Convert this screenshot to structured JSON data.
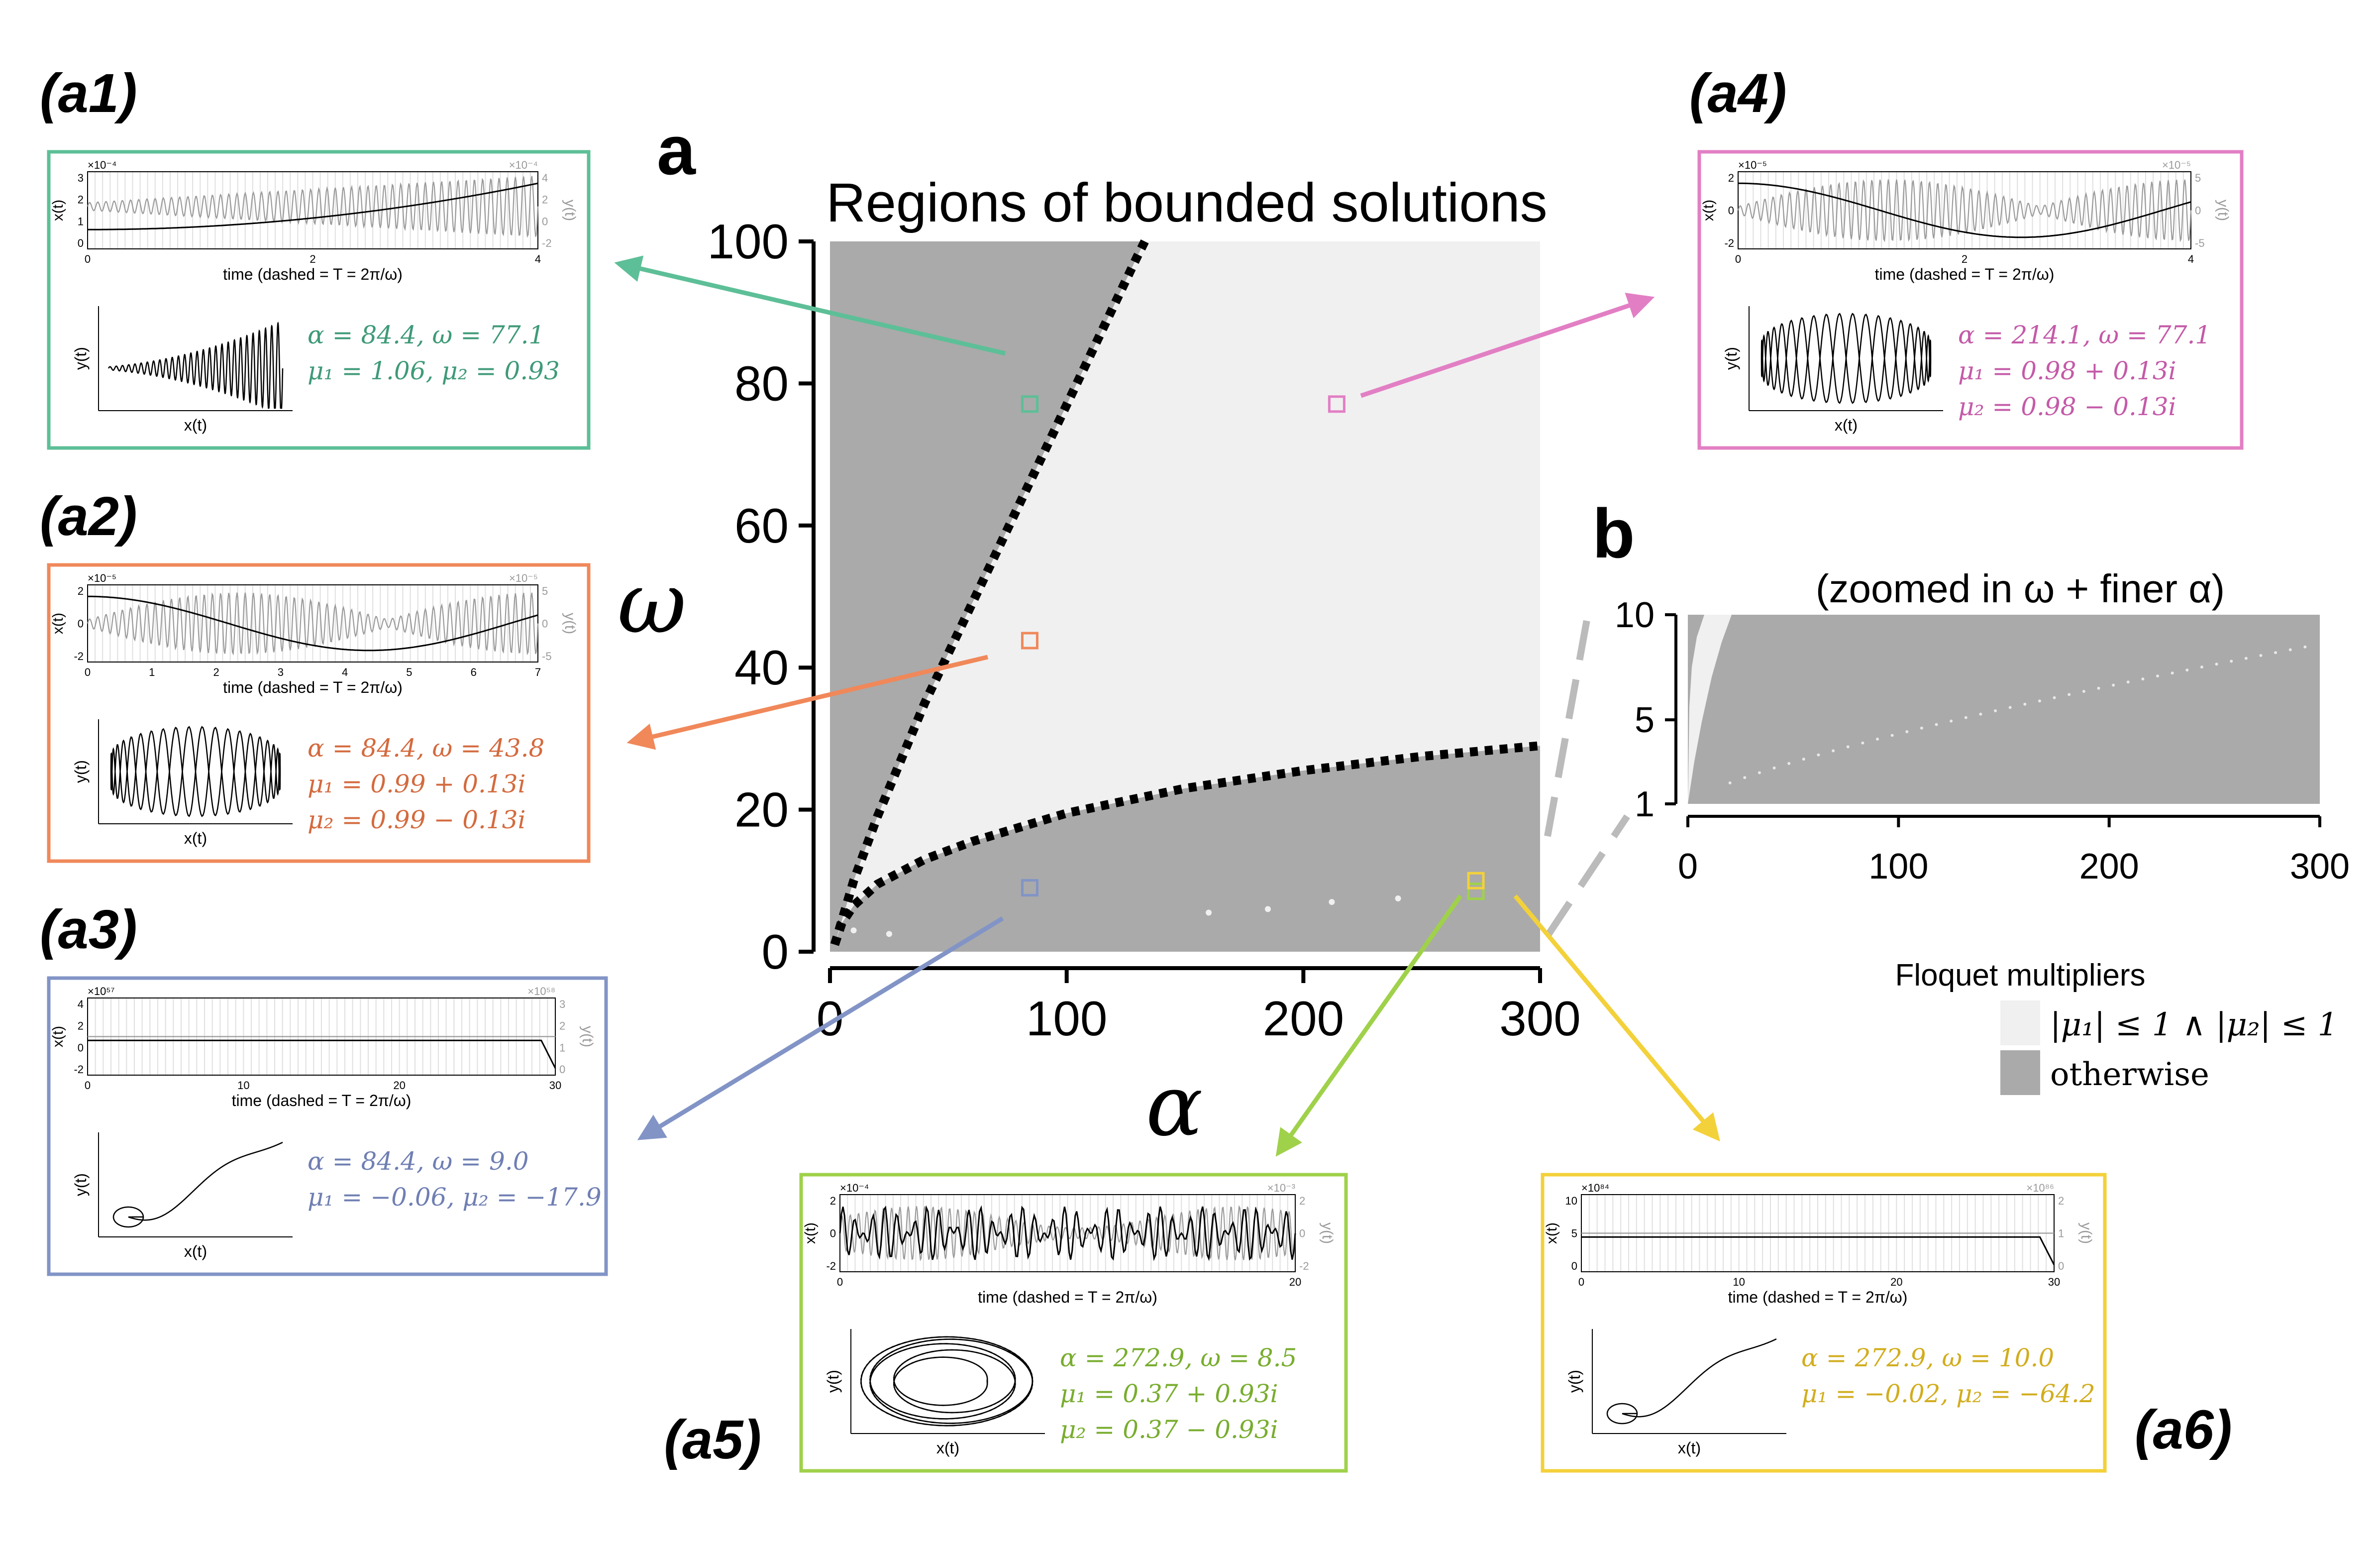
{
  "colors": {
    "a1": "#5dbf97",
    "a2": "#f0885a",
    "a3": "#8294c6",
    "a4": "#e27fc4",
    "a5": "#9fd14a",
    "a6": "#f3d13a",
    "a1_text": "#3f9a78",
    "a2_text": "#d46a3e",
    "a3_text": "#6f7fb3",
    "a4_text": "#c45aa8",
    "a5_text": "#78ad2e",
    "a6_text": "#d2ad1e",
    "bounded": "#f0f0f0",
    "otherwise": "#aaaaaa",
    "curve": "#000000"
  },
  "chart_data": [
    {
      "type": "heatmap",
      "panel_label": "a",
      "title": "Regions of bounded solutions",
      "xlabel": "α",
      "ylabel": "ω",
      "xlim": [
        0,
        300
      ],
      "ylim": [
        0,
        100
      ],
      "x_ticks": [
        "0",
        "100",
        "200",
        "300"
      ],
      "y_ticks": [
        "0",
        "20",
        "40",
        "60",
        "80",
        "100"
      ],
      "upper_boundary": [
        [
          2,
          1
        ],
        [
          10,
          10
        ],
        [
          20,
          19
        ],
        [
          30,
          27
        ],
        [
          40,
          35
        ],
        [
          50,
          42
        ],
        [
          60,
          49
        ],
        [
          70,
          56
        ],
        [
          80,
          63
        ],
        [
          90,
          70
        ],
        [
          100,
          77
        ],
        [
          110,
          84
        ],
        [
          120,
          91
        ],
        [
          130,
          98
        ],
        [
          133,
          100
        ]
      ],
      "lower_boundary": [
        [
          2,
          1
        ],
        [
          5,
          4
        ],
        [
          10,
          6.5
        ],
        [
          20,
          9.5
        ],
        [
          40,
          13
        ],
        [
          60,
          15.5
        ],
        [
          80,
          17.5
        ],
        [
          100,
          19.5
        ],
        [
          150,
          23
        ],
        [
          200,
          25.5
        ],
        [
          250,
          27.5
        ],
        [
          300,
          29
        ]
      ],
      "marked_points": [
        {
          "id": "a1",
          "alpha": 84.4,
          "omega": 77.1
        },
        {
          "id": "a2",
          "alpha": 84.4,
          "omega": 43.8
        },
        {
          "id": "a3",
          "alpha": 84.4,
          "omega": 9.0
        },
        {
          "id": "a4",
          "alpha": 214.1,
          "omega": 77.1
        },
        {
          "id": "a5",
          "alpha": 272.9,
          "omega": 8.5
        },
        {
          "id": "a6",
          "alpha": 272.9,
          "omega": 10.0
        }
      ],
      "bounded_dots": [
        [
          10,
          3
        ],
        [
          25,
          2.5
        ],
        [
          160,
          5.5
        ],
        [
          185,
          6
        ],
        [
          212,
          7
        ],
        [
          240,
          7.5
        ]
      ]
    },
    {
      "type": "heatmap",
      "panel_label": "b",
      "title": "(zoomed in ω + finer α)",
      "xlim": [
        0,
        300
      ],
      "ylim": [
        1,
        10
      ],
      "x_ticks": [
        "0",
        "100",
        "200",
        "300"
      ],
      "y_ticks": [
        "1",
        "5",
        "10"
      ],
      "legend_title": "Floquet multipliers",
      "legend": [
        {
          "label": "|μ₁| ≤ 1 ∧ |μ₂| ≤ 1",
          "color": "#f0f0f0"
        },
        {
          "label": "otherwise",
          "color": "#aaaaaa"
        }
      ]
    }
  ],
  "insets": {
    "time_label": "time (dashed = T = 2π/ω)",
    "x_label": "x(t)",
    "y_label": "y(t)",
    "a1": {
      "label": "(a1)",
      "exp": "×10⁻⁴",
      "exp_r": "×10⁻⁴",
      "left_ticks": [
        "3",
        "2",
        "1",
        "0"
      ],
      "right_ticks": [
        "4",
        "2",
        "0",
        "-2"
      ],
      "x_ticks": [
        "0",
        "2",
        "4"
      ],
      "line1": "α = 84.4, ω = 77.1",
      "line2": "μ₁ = 1.06, μ₂ = 0.93",
      "line3": ""
    },
    "a2": {
      "label": "(a2)",
      "exp": "×10⁻⁵",
      "exp_r": "×10⁻⁵",
      "left_ticks": [
        "2",
        "0",
        "-2"
      ],
      "right_ticks": [
        "5",
        "0",
        "-5"
      ],
      "x_ticks": [
        "0",
        "1",
        "2",
        "3",
        "4",
        "5",
        "6",
        "7"
      ],
      "line1": "α = 84.4, ω = 43.8",
      "line2": "μ₁ = 0.99 + 0.13i",
      "line3": "μ₂ = 0.99 − 0.13i"
    },
    "a3": {
      "label": "(a3)",
      "exp": "×10⁵⁷",
      "exp_r": "×10⁵⁸",
      "left_ticks": [
        "4",
        "2",
        "0",
        "-2"
      ],
      "right_ticks": [
        "3",
        "2",
        "1",
        "0"
      ],
      "x_ticks": [
        "0",
        "10",
        "20",
        "30"
      ],
      "line1": "α = 84.4, ω = 9.0",
      "line2": "μ₁ = −0.06, μ₂ = −17.9",
      "line3": ""
    },
    "a4": {
      "label": "(a4)",
      "exp": "×10⁻⁵",
      "exp_r": "×10⁻⁵",
      "left_ticks": [
        "2",
        "0",
        "-2"
      ],
      "right_ticks": [
        "5",
        "0",
        "-5"
      ],
      "x_ticks": [
        "0",
        "2",
        "4"
      ],
      "line1": "α = 214.1, ω = 77.1",
      "line2": "μ₁ = 0.98 + 0.13i",
      "line3": "μ₂ = 0.98 − 0.13i"
    },
    "a5": {
      "label": "(a5)",
      "exp": "×10⁻⁴",
      "exp_r": "×10⁻³",
      "left_ticks": [
        "2",
        "0",
        "-2"
      ],
      "right_ticks": [
        "2",
        "0",
        "-2"
      ],
      "x_ticks": [
        "0",
        "20"
      ],
      "line1": "α = 272.9, ω = 8.5",
      "line2": "μ₁ = 0.37 + 0.93i",
      "line3": "μ₂ = 0.37 − 0.93i"
    },
    "a6": {
      "label": "(a6)",
      "exp": "×10⁸⁴",
      "exp_r": "×10⁸⁶",
      "left_ticks": [
        "10",
        "5",
        "0"
      ],
      "right_ticks": [
        "2",
        "1",
        "0"
      ],
      "x_ticks": [
        "0",
        "10",
        "20",
        "30"
      ],
      "line1": "α = 272.9, ω = 10.0",
      "line2": "μ₁ = −0.02, μ₂ = −64.2",
      "line3": ""
    }
  }
}
